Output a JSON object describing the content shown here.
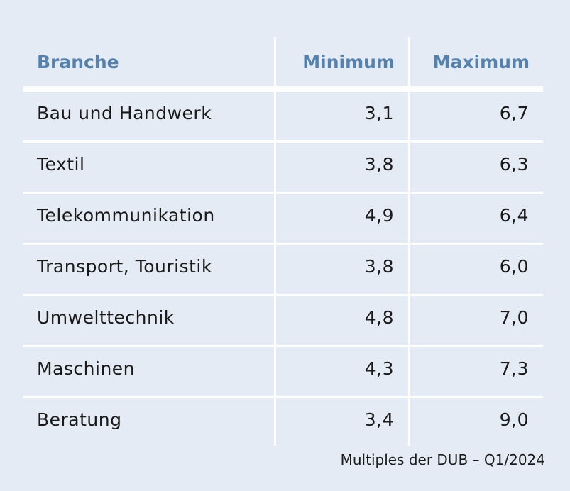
{
  "chart_data": {
    "type": "table",
    "columns": [
      "Branche",
      "Minimum",
      "Maximum"
    ],
    "rows": [
      [
        "Bau und Handwerk",
        "3,1",
        "6,7"
      ],
      [
        "Textil",
        "3,8",
        "6,3"
      ],
      [
        "Telekommunikation",
        "4,9",
        "6,4"
      ],
      [
        "Transport, Touristik",
        "3,8",
        "6,0"
      ],
      [
        "Umwelttechnik",
        "4,8",
        "7,0"
      ],
      [
        "Maschinen",
        "4,3",
        "7,3"
      ],
      [
        "Beratung",
        "3,4",
        "9,0"
      ]
    ],
    "note": "Multiples der DUB – Q1/2024",
    "colors": {
      "background": "#e4ebf4",
      "header": "#5581ad",
      "lines": "#ffffff"
    }
  }
}
